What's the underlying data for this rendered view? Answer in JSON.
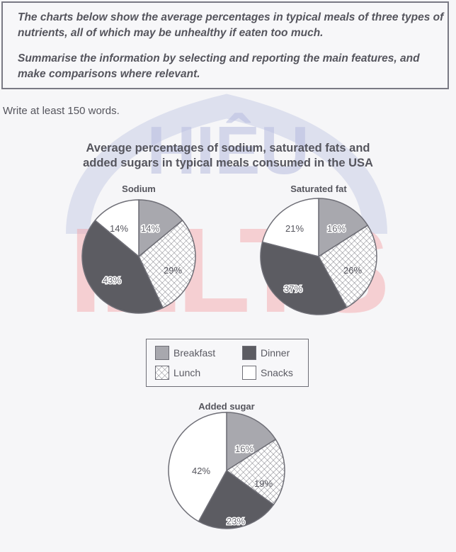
{
  "task": {
    "paragraph_1": "The charts below show the average percentages in typical meals of three types of nutrients, all of which may be unhealthy if eaten too much.",
    "paragraph_2": "Summarise the information by selecting and reporting the main features, and make comparisons where relevant."
  },
  "instruction": "Write at least 150 words.",
  "watermark": {
    "line1": "HIÊU",
    "line2": "IELTS"
  },
  "colors": {
    "breakfast": "#a8a8ae",
    "lunch_pattern": "crosshatch",
    "dinner": "#5c5c62",
    "snacks": "#ffffff",
    "outline": "#6e6e76"
  },
  "chart_data": {
    "type": "pie",
    "title": "Average percentages of sodium, saturated fats and added sugars in typical meals consumed in the USA",
    "title_line1": "Average percentages of sodium, saturated fats and",
    "title_line2": "added sugars in typical meals consumed in the USA",
    "categories": [
      "Breakfast",
      "Lunch",
      "Dinner",
      "Snacks"
    ],
    "legend_position": "between top pies and bottom pie",
    "charts": [
      {
        "name": "Sodium",
        "values": [
          14,
          29,
          43,
          14
        ],
        "labels": [
          "14%",
          "29%",
          "43%",
          "14%"
        ]
      },
      {
        "name": "Saturated fat",
        "values": [
          16,
          26,
          37,
          21
        ],
        "labels": [
          "16%",
          "26%",
          "37%",
          "21%"
        ]
      },
      {
        "name": "Added sugar",
        "values": [
          16,
          19,
          23,
          42
        ],
        "labels": [
          "16%",
          "19%",
          "23%",
          "42%"
        ]
      }
    ]
  },
  "legend": {
    "items": [
      {
        "label": "Breakfast"
      },
      {
        "label": "Dinner"
      },
      {
        "label": "Lunch"
      },
      {
        "label": "Snacks"
      }
    ]
  }
}
